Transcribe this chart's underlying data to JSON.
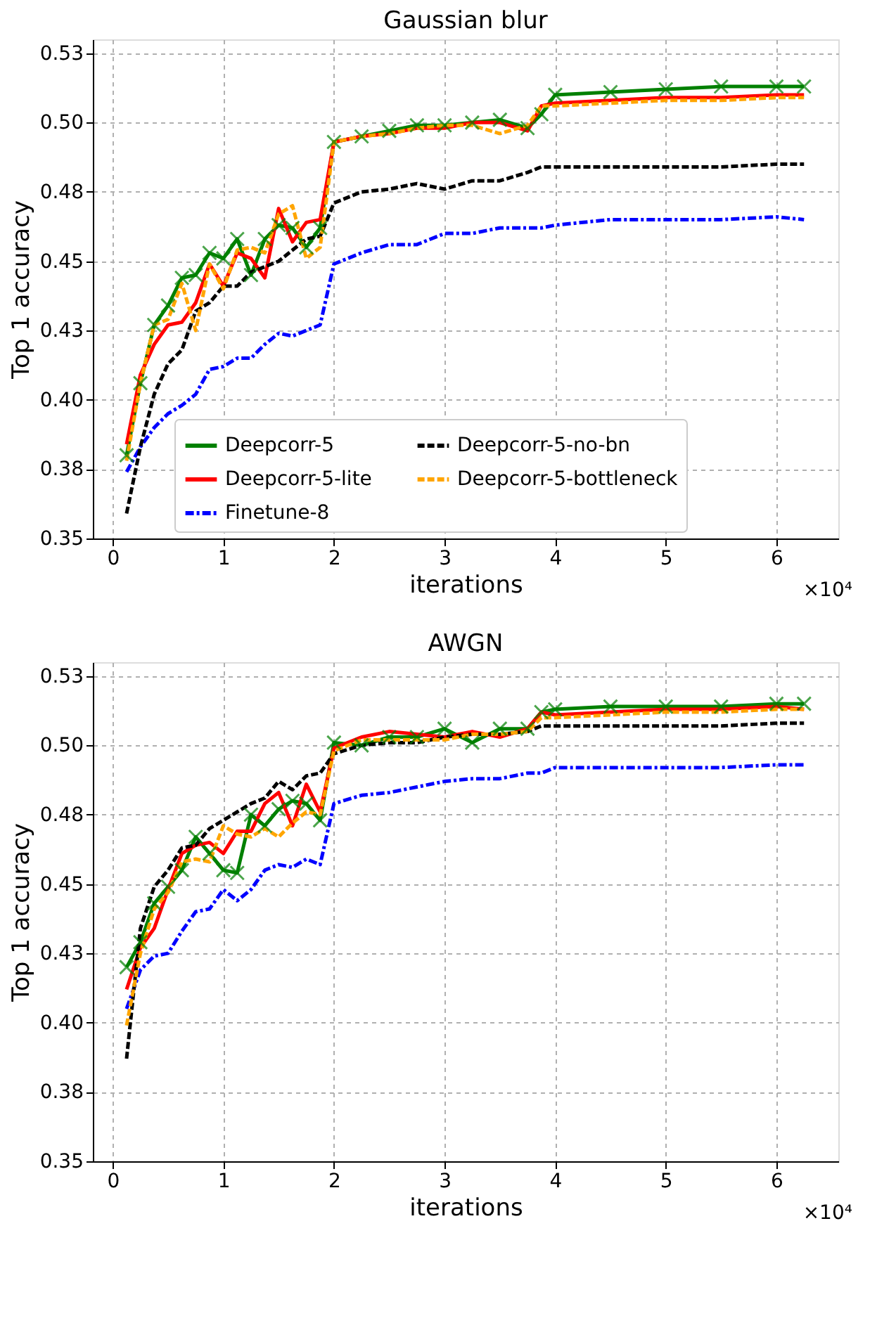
{
  "chart_data": [
    {
      "type": "line",
      "title": "Gaussian blur",
      "xlabel": "iterations",
      "ylabel": "Top 1 accuracy",
      "annotations": [
        "×10⁴"
      ],
      "x": [
        0.125,
        0.25,
        0.375,
        0.5,
        0.625,
        0.75,
        0.875,
        1,
        1.125,
        1.25,
        1.375,
        1.5,
        1.625,
        1.75,
        1.875,
        2,
        2.25,
        2.5,
        2.75,
        3,
        3.25,
        3.5,
        3.75,
        3.875,
        4,
        4.5,
        5,
        5.5,
        6,
        6.25
      ],
      "xlim": [
        -0.18,
        6.56
      ],
      "xticks": [
        0,
        1,
        2,
        3,
        4,
        5,
        6
      ],
      "ylim": [
        0.35,
        0.53
      ],
      "yticks": [
        {
          "value": 0.35,
          "label": "0.35"
        },
        {
          "value": 0.375,
          "label": "0.38"
        },
        {
          "value": 0.4,
          "label": "0.40"
        },
        {
          "value": 0.425,
          "label": "0.43"
        },
        {
          "value": 0.45,
          "label": "0.45"
        },
        {
          "value": 0.475,
          "label": "0.48"
        },
        {
          "value": 0.5,
          "label": "0.50"
        },
        {
          "value": 0.525,
          "label": "0.53"
        }
      ],
      "grid": true,
      "legend": "bottom",
      "series": [
        {
          "name": "Deepcorr-5",
          "color": "#008000",
          "line_style": "solid",
          "marker": "cross",
          "values": [
            0.38,
            0.406,
            0.427,
            0.434,
            0.444,
            0.445,
            0.453,
            0.451,
            0.458,
            0.445,
            0.458,
            0.463,
            0.462,
            0.455,
            0.462,
            0.493,
            0.495,
            0.497,
            0.499,
            0.499,
            0.5,
            0.501,
            0.498,
            0.503,
            0.51,
            0.511,
            0.512,
            0.513,
            0.513,
            0.513
          ]
        },
        {
          "name": "Deepcorr-5-lite",
          "color": "#ff0000",
          "line_style": "solid",
          "values": [
            0.384,
            0.409,
            0.42,
            0.427,
            0.428,
            0.435,
            0.449,
            0.441,
            0.453,
            0.451,
            0.444,
            0.469,
            0.457,
            0.464,
            0.465,
            0.493,
            0.495,
            0.496,
            0.498,
            0.498,
            0.5,
            0.5,
            0.497,
            0.506,
            0.507,
            0.508,
            0.509,
            0.509,
            0.51,
            0.51
          ]
        },
        {
          "name": "Finetune-8",
          "color": "#0000ff",
          "line_style": "dotted",
          "values": [
            0.374,
            0.383,
            0.39,
            0.395,
            0.398,
            0.402,
            0.411,
            0.412,
            0.415,
            0.415,
            0.42,
            0.424,
            0.423,
            0.425,
            0.427,
            0.449,
            0.453,
            0.456,
            0.456,
            0.46,
            0.46,
            0.462,
            0.462,
            0.462,
            0.463,
            0.465,
            0.465,
            0.465,
            0.466,
            0.465
          ]
        },
        {
          "name": "Deepcorr-5-no-bn",
          "color": "#000000",
          "line_style": "dashed",
          "values": [
            0.359,
            0.383,
            0.402,
            0.413,
            0.418,
            0.432,
            0.435,
            0.441,
            0.441,
            0.446,
            0.448,
            0.45,
            0.454,
            0.458,
            0.459,
            0.471,
            0.475,
            0.476,
            0.478,
            0.476,
            0.479,
            0.479,
            0.482,
            0.484,
            0.484,
            0.484,
            0.484,
            0.484,
            0.485,
            0.485
          ]
        },
        {
          "name": "Deepcorr-5-bottleneck",
          "color": "#ffa500",
          "line_style": "dashed",
          "values": [
            0.378,
            0.406,
            0.427,
            0.429,
            0.442,
            0.425,
            0.449,
            0.44,
            0.454,
            0.455,
            0.453,
            0.467,
            0.47,
            0.451,
            0.455,
            0.493,
            0.495,
            0.496,
            0.498,
            0.499,
            0.499,
            0.496,
            0.499,
            0.506,
            0.506,
            0.507,
            0.508,
            0.508,
            0.509,
            0.509
          ]
        }
      ]
    },
    {
      "type": "line",
      "title": "AWGN",
      "xlabel": "iterations",
      "ylabel": "Top 1 accuracy",
      "annotations": [
        "×10⁴"
      ],
      "x": [
        0.125,
        0.25,
        0.375,
        0.5,
        0.625,
        0.75,
        0.875,
        1,
        1.125,
        1.25,
        1.375,
        1.5,
        1.625,
        1.75,
        1.875,
        2,
        2.25,
        2.5,
        2.75,
        3,
        3.25,
        3.5,
        3.75,
        3.875,
        4,
        4.5,
        5,
        5.5,
        6,
        6.25
      ],
      "xlim": [
        -0.18,
        6.56
      ],
      "xticks": [
        0,
        1,
        2,
        3,
        4,
        5,
        6
      ],
      "ylim": [
        0.35,
        0.53
      ],
      "yticks": [
        {
          "value": 0.35,
          "label": "0.35"
        },
        {
          "value": 0.375,
          "label": "0.38"
        },
        {
          "value": 0.4,
          "label": "0.40"
        },
        {
          "value": 0.425,
          "label": "0.43"
        },
        {
          "value": 0.45,
          "label": "0.45"
        },
        {
          "value": 0.475,
          "label": "0.48"
        },
        {
          "value": 0.5,
          "label": "0.50"
        },
        {
          "value": 0.525,
          "label": "0.53"
        }
      ],
      "grid": true,
      "legend": "bottom",
      "series": [
        {
          "name": "Deepcorr-5",
          "color": "#008000",
          "line_style": "solid",
          "marker": "cross",
          "values": [
            0.42,
            0.429,
            0.443,
            0.449,
            0.455,
            0.467,
            0.461,
            0.455,
            0.454,
            0.475,
            0.471,
            0.477,
            0.48,
            0.479,
            0.473,
            0.501,
            0.5,
            0.503,
            0.503,
            0.506,
            0.501,
            0.506,
            0.506,
            0.512,
            0.513,
            0.514,
            0.514,
            0.514,
            0.515,
            0.515
          ]
        },
        {
          "name": "Deepcorr-5-lite",
          "color": "#ff0000",
          "line_style": "solid",
          "values": [
            0.412,
            0.427,
            0.434,
            0.448,
            0.461,
            0.464,
            0.465,
            0.461,
            0.469,
            0.469,
            0.479,
            0.483,
            0.471,
            0.486,
            0.476,
            0.499,
            0.503,
            0.505,
            0.504,
            0.503,
            0.505,
            0.503,
            0.506,
            0.512,
            0.511,
            0.512,
            0.513,
            0.513,
            0.514,
            0.513
          ]
        },
        {
          "name": "Finetune-8",
          "color": "#0000ff",
          "line_style": "dotted",
          "values": [
            0.405,
            0.419,
            0.424,
            0.425,
            0.433,
            0.44,
            0.441,
            0.448,
            0.444,
            0.448,
            0.455,
            0.457,
            0.456,
            0.459,
            0.457,
            0.479,
            0.482,
            0.483,
            0.485,
            0.487,
            0.488,
            0.488,
            0.49,
            0.49,
            0.492,
            0.492,
            0.492,
            0.492,
            0.493,
            0.493
          ]
        },
        {
          "name": "Deepcorr-5-no-bn",
          "color": "#000000",
          "line_style": "dashed",
          "values": [
            0.387,
            0.434,
            0.449,
            0.455,
            0.463,
            0.464,
            0.47,
            0.473,
            0.476,
            0.479,
            0.481,
            0.487,
            0.484,
            0.489,
            0.49,
            0.497,
            0.5,
            0.501,
            0.501,
            0.503,
            0.504,
            0.504,
            0.505,
            0.507,
            0.507,
            0.507,
            0.507,
            0.507,
            0.508,
            0.508
          ]
        },
        {
          "name": "Deepcorr-5-bottleneck",
          "color": "#ffa500",
          "line_style": "dashed",
          "values": [
            0.399,
            0.425,
            0.441,
            0.447,
            0.458,
            0.459,
            0.458,
            0.471,
            0.468,
            0.467,
            0.47,
            0.467,
            0.472,
            0.476,
            0.475,
            0.498,
            0.502,
            0.502,
            0.502,
            0.502,
            0.504,
            0.504,
            0.505,
            0.51,
            0.51,
            0.511,
            0.512,
            0.512,
            0.513,
            0.513
          ]
        }
      ]
    }
  ]
}
